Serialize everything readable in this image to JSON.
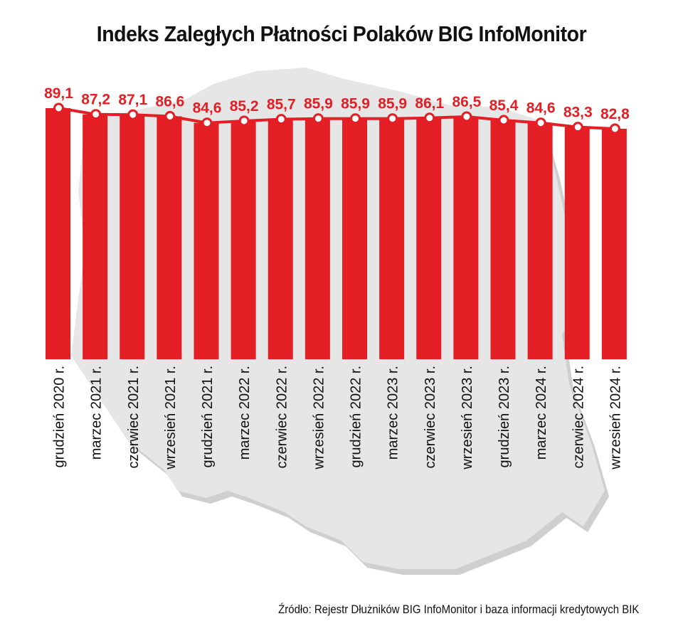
{
  "title": "Indeks Zaległych Płatności Polaków BIG InfoMonitor",
  "source": "Źródło: Rejestr Dłużników BIG InfoMonitor i baza informacji kredytowych BIK",
  "colors": {
    "bar": "#e31e24",
    "line": "#e31e24",
    "map": "#e2e2e2",
    "map_shadow": "#c9c9c9"
  },
  "background_icon": "poland-map-silhouette",
  "chart_data": {
    "type": "bar",
    "title": "Indeks Zaległych Płatności Polaków BIG InfoMonitor",
    "xlabel": "",
    "ylabel": "",
    "grid": false,
    "legend": "none",
    "overlay": "line connecting values",
    "categories": [
      "grudzień 2020 r.",
      "marzec 2021 r.",
      "czerwiec 2021 r.",
      "wrzesień 2021 r.",
      "grudzień 2021 r.",
      "marzec 2022 r.",
      "czerwiec 2022 r.",
      "wrzesień 2022 r.",
      "grudzień 2022 r.",
      "marzec 2023 r.",
      "czerwiec 2023 r.",
      "wrzesień 2023 r.",
      "grudzień 2023 r.",
      "marzec 2024 r.",
      "czerwiec 2024 r.",
      "wrzesień 2024 r."
    ],
    "values": [
      89.1,
      87.2,
      87.1,
      86.6,
      84.6,
      85.2,
      85.7,
      85.9,
      85.9,
      85.9,
      86.1,
      86.5,
      85.4,
      84.6,
      83.3,
      82.8
    ],
    "value_labels": [
      "89,1",
      "87,2",
      "87,1",
      "86,6",
      "84,6",
      "85,2",
      "85,7",
      "85,9",
      "85,9",
      "85,9",
      "86,1",
      "86,5",
      "85,4",
      "84,6",
      "83,3",
      "82,8"
    ]
  }
}
